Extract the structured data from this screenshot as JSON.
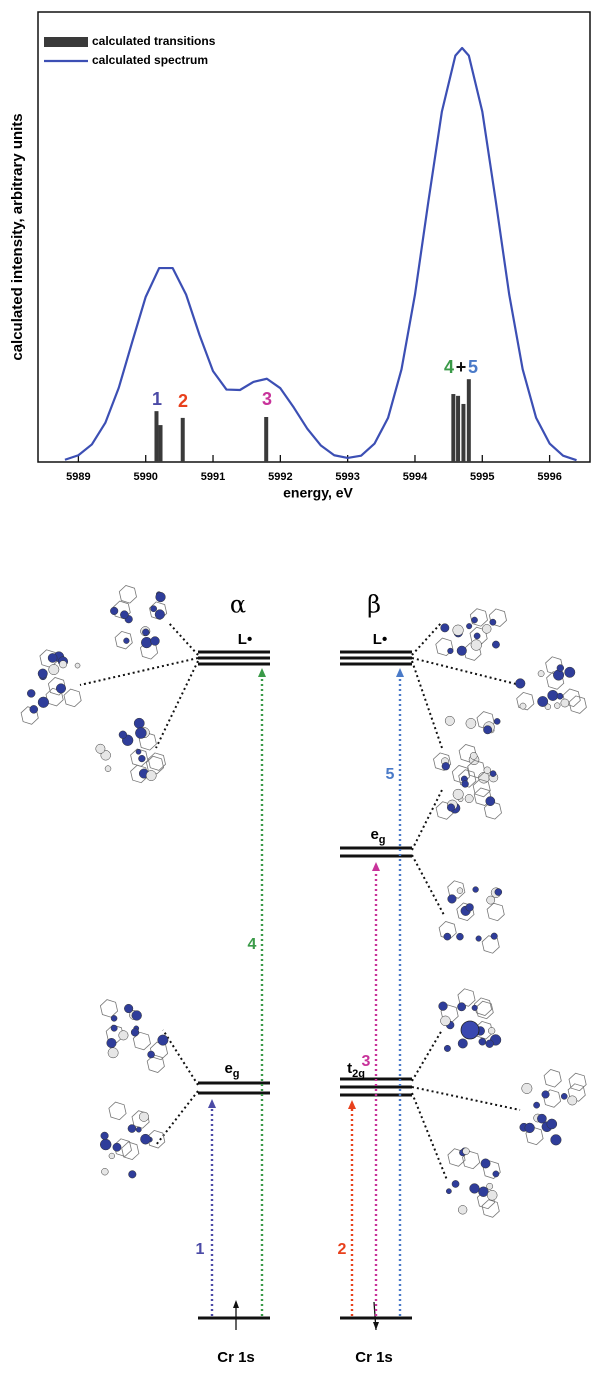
{
  "chart_data": {
    "type": "combo",
    "xlabel": "energy, eV",
    "ylabel": "calculated intensity, arbitrary units",
    "xlim": [
      5988.4,
      5996.6
    ],
    "ylim": [
      0,
      1
    ],
    "xticks": [
      5989,
      5990,
      5991,
      5992,
      5993,
      5994,
      5995,
      5996
    ],
    "legend": "top-left",
    "series": [
      {
        "name": "calculated transitions",
        "type": "bar",
        "color": "#3a3a3a",
        "x": [
          5990.16,
          5990.22,
          5990.55,
          5991.79,
          5994.57,
          5994.64,
          5994.72,
          5994.8
        ],
        "values": [
          0.113,
          0.082,
          0.098,
          0.1,
          0.151,
          0.147,
          0.129,
          0.184
        ]
      },
      {
        "name": "calculated spectrum",
        "type": "line",
        "color": "#3c4fb4",
        "x": [
          5988.8,
          5989.0,
          5989.2,
          5989.4,
          5989.6,
          5989.8,
          5990.0,
          5990.2,
          5990.4,
          5990.6,
          5990.8,
          5991.0,
          5991.2,
          5991.4,
          5991.6,
          5991.8,
          5992.0,
          5992.2,
          5992.4,
          5992.6,
          5992.8,
          5993.0,
          5993.2,
          5993.4,
          5993.6,
          5993.8,
          5994.0,
          5994.2,
          5994.4,
          5994.6,
          5994.7,
          5994.8,
          5995.0,
          5995.2,
          5995.4,
          5995.6,
          5995.8,
          5996.0,
          5996.2,
          5996.4
        ],
        "values": [
          0.005,
          0.015,
          0.039,
          0.087,
          0.165,
          0.267,
          0.367,
          0.431,
          0.431,
          0.372,
          0.282,
          0.202,
          0.161,
          0.16,
          0.178,
          0.185,
          0.164,
          0.121,
          0.074,
          0.037,
          0.015,
          0.009,
          0.014,
          0.041,
          0.098,
          0.206,
          0.372,
          0.58,
          0.779,
          0.903,
          0.92,
          0.903,
          0.779,
          0.58,
          0.372,
          0.206,
          0.098,
          0.041,
          0.014,
          0.004
        ]
      }
    ],
    "annotations": [
      {
        "text": "1",
        "color": "#4b4aa6"
      },
      {
        "text": "2",
        "color": "#e8401c"
      },
      {
        "text": "3",
        "color": "#c8329a"
      },
      {
        "text": "4",
        "color": "#3a9a48"
      },
      {
        "text": "+",
        "color": "#111111"
      },
      {
        "text": "5",
        "color": "#4a7ac8"
      }
    ]
  },
  "diagram": {
    "columns": [
      {
        "label": "α",
        "levels": [
          {
            "label": "L•"
          },
          {
            "label": "e",
            "sub": "g"
          }
        ],
        "core": "Cr 1s"
      },
      {
        "label": "β",
        "levels": [
          {
            "label": "L•"
          },
          {
            "label": "e",
            "sub": "g"
          },
          {
            "label": "t",
            "sub": "2g"
          }
        ],
        "core": "Cr 1s"
      }
    ],
    "transitions": [
      {
        "label": "1",
        "color": "#4b4aa6"
      },
      {
        "label": "2",
        "color": "#e8401c"
      },
      {
        "label": "3",
        "color": "#c8329a"
      },
      {
        "label": "4",
        "color": "#3a9a48"
      },
      {
        "label": "5",
        "color": "#4a7ac8"
      }
    ]
  }
}
